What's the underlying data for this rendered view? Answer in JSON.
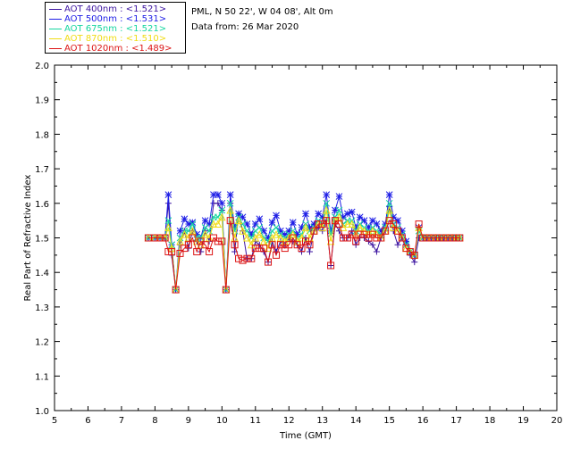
{
  "header": {
    "site_line": "PML, N 50 22', W 04 08', Alt 0m",
    "date_line": "Data from: 26 Mar 2020"
  },
  "legend": [
    {
      "label": "AOT  400nm : <1.521>",
      "color": "#3c14a0"
    },
    {
      "label": "AOT  500nm : <1.531>",
      "color": "#1e1ee6"
    },
    {
      "label": "AOT  675nm : <1.521>",
      "color": "#16d6a0"
    },
    {
      "label": "AOT  870nm : <1.510>",
      "color": "#f0dc14"
    },
    {
      "label": "AOT 1020nm : <1.489>",
      "color": "#dc1414"
    }
  ],
  "chart_data": {
    "type": "line",
    "title": "",
    "xlabel": "Time (GMT)",
    "ylabel": "Real Part of Refractive Index",
    "xlim": [
      5,
      20
    ],
    "ylim": [
      1.0,
      2.0
    ],
    "xticks": [
      5,
      6,
      7,
      8,
      9,
      10,
      11,
      12,
      13,
      14,
      15,
      16,
      17,
      18,
      19,
      20
    ],
    "yticks": [
      1.0,
      1.1,
      1.2,
      1.3,
      1.4,
      1.5,
      1.6,
      1.7,
      1.8,
      1.9,
      2.0
    ],
    "x": [
      7.8,
      8.0,
      8.15,
      8.3,
      8.4,
      8.5,
      8.62,
      8.75,
      8.88,
      9.0,
      9.12,
      9.25,
      9.37,
      9.5,
      9.62,
      9.75,
      9.88,
      10.0,
      10.12,
      10.25,
      10.38,
      10.5,
      10.62,
      10.75,
      10.88,
      11.0,
      11.12,
      11.25,
      11.38,
      11.5,
      11.62,
      11.75,
      11.88,
      12.0,
      12.12,
      12.25,
      12.38,
      12.5,
      12.62,
      12.75,
      12.88,
      13.0,
      13.12,
      13.25,
      13.38,
      13.5,
      13.62,
      13.75,
      13.88,
      14.0,
      14.12,
      14.25,
      14.38,
      14.5,
      14.62,
      14.75,
      14.88,
      15.0,
      15.12,
      15.25,
      15.38,
      15.5,
      15.62,
      15.75,
      15.88,
      16.0,
      16.12,
      16.25,
      16.38,
      16.5,
      16.62,
      16.75,
      16.88,
      17.0,
      17.1
    ],
    "series": [
      {
        "name": "AOT  400nm",
        "color": "#3c14a0",
        "marker": "plus",
        "values": [
          1.5,
          1.5,
          1.5,
          1.5,
          1.6,
          1.45,
          1.35,
          1.48,
          1.52,
          1.47,
          1.52,
          1.49,
          1.46,
          1.52,
          1.49,
          1.6,
          1.6,
          1.58,
          1.35,
          1.6,
          1.46,
          1.57,
          1.52,
          1.44,
          1.44,
          1.49,
          1.48,
          1.46,
          1.43,
          1.49,
          1.46,
          1.49,
          1.48,
          1.5,
          1.49,
          1.48,
          1.46,
          1.5,
          1.46,
          1.52,
          1.53,
          1.52,
          1.55,
          1.42,
          1.54,
          1.52,
          1.5,
          1.5,
          1.52,
          1.48,
          1.5,
          1.5,
          1.49,
          1.48,
          1.46,
          1.5,
          1.52,
          1.59,
          1.52,
          1.48,
          1.5,
          1.49,
          1.45,
          1.43,
          1.5,
          1.5,
          1.5,
          1.5,
          1.5,
          1.5,
          1.5,
          1.5,
          1.5,
          1.5,
          1.5
        ]
      },
      {
        "name": "AOT  500nm",
        "color": "#1e1ee6",
        "marker": "star",
        "values": [
          1.5,
          1.5,
          1.5,
          1.5,
          1.625,
          1.48,
          1.35,
          1.52,
          1.555,
          1.54,
          1.545,
          1.51,
          1.5,
          1.55,
          1.54,
          1.625,
          1.625,
          1.6,
          1.35,
          1.625,
          1.53,
          1.57,
          1.56,
          1.54,
          1.51,
          1.54,
          1.555,
          1.52,
          1.5,
          1.545,
          1.565,
          1.52,
          1.51,
          1.52,
          1.545,
          1.51,
          1.53,
          1.57,
          1.53,
          1.54,
          1.57,
          1.56,
          1.625,
          1.52,
          1.58,
          1.62,
          1.56,
          1.57,
          1.575,
          1.53,
          1.56,
          1.55,
          1.53,
          1.55,
          1.54,
          1.52,
          1.54,
          1.625,
          1.56,
          1.55,
          1.52,
          1.49,
          1.46,
          1.45,
          1.53,
          1.5,
          1.5,
          1.5,
          1.5,
          1.5,
          1.5,
          1.5,
          1.5,
          1.5,
          1.5
        ]
      },
      {
        "name": "AOT  675nm",
        "color": "#16d6a0",
        "marker": "cross",
        "values": [
          1.5,
          1.5,
          1.5,
          1.5,
          1.55,
          1.48,
          1.35,
          1.5,
          1.52,
          1.52,
          1.54,
          1.5,
          1.5,
          1.53,
          1.52,
          1.56,
          1.56,
          1.58,
          1.35,
          1.6,
          1.52,
          1.56,
          1.54,
          1.52,
          1.5,
          1.52,
          1.53,
          1.5,
          1.49,
          1.52,
          1.53,
          1.51,
          1.5,
          1.51,
          1.52,
          1.5,
          1.51,
          1.54,
          1.52,
          1.53,
          1.55,
          1.54,
          1.6,
          1.51,
          1.56,
          1.58,
          1.54,
          1.55,
          1.55,
          1.52,
          1.54,
          1.53,
          1.52,
          1.53,
          1.52,
          1.51,
          1.53,
          1.6,
          1.54,
          1.53,
          1.51,
          1.48,
          1.46,
          1.45,
          1.52,
          1.5,
          1.5,
          1.5,
          1.5,
          1.5,
          1.5,
          1.5,
          1.5,
          1.5,
          1.5
        ]
      },
      {
        "name": "AOT  870nm",
        "color": "#f0dc14",
        "marker": "triangle",
        "values": [
          1.5,
          1.5,
          1.5,
          1.5,
          1.53,
          1.47,
          1.35,
          1.49,
          1.51,
          1.5,
          1.52,
          1.49,
          1.48,
          1.51,
          1.5,
          1.54,
          1.54,
          1.56,
          1.35,
          1.58,
          1.5,
          1.55,
          1.52,
          1.5,
          1.48,
          1.5,
          1.51,
          1.49,
          1.47,
          1.5,
          1.51,
          1.5,
          1.49,
          1.5,
          1.51,
          1.49,
          1.5,
          1.53,
          1.5,
          1.52,
          1.54,
          1.53,
          1.58,
          1.49,
          1.55,
          1.56,
          1.53,
          1.54,
          1.54,
          1.51,
          1.53,
          1.52,
          1.51,
          1.52,
          1.51,
          1.5,
          1.52,
          1.58,
          1.53,
          1.52,
          1.5,
          1.47,
          1.46,
          1.45,
          1.53,
          1.5,
          1.5,
          1.5,
          1.5,
          1.5,
          1.5,
          1.5,
          1.5,
          1.5,
          1.5
        ]
      },
      {
        "name": "AOT 1020nm",
        "color": "#dc1414",
        "marker": "square",
        "values": [
          1.5,
          1.5,
          1.5,
          1.5,
          1.46,
          1.46,
          1.35,
          1.455,
          1.47,
          1.48,
          1.5,
          1.46,
          1.49,
          1.48,
          1.46,
          1.5,
          1.49,
          1.49,
          1.35,
          1.55,
          1.48,
          1.44,
          1.435,
          1.44,
          1.44,
          1.47,
          1.47,
          1.47,
          1.43,
          1.48,
          1.45,
          1.48,
          1.47,
          1.48,
          1.5,
          1.48,
          1.47,
          1.49,
          1.48,
          1.52,
          1.54,
          1.54,
          1.55,
          1.42,
          1.55,
          1.54,
          1.5,
          1.5,
          1.51,
          1.49,
          1.51,
          1.51,
          1.5,
          1.51,
          1.5,
          1.5,
          1.52,
          1.55,
          1.54,
          1.52,
          1.5,
          1.47,
          1.46,
          1.45,
          1.54,
          1.5,
          1.5,
          1.5,
          1.5,
          1.5,
          1.5,
          1.5,
          1.5,
          1.5,
          1.5
        ]
      }
    ]
  }
}
